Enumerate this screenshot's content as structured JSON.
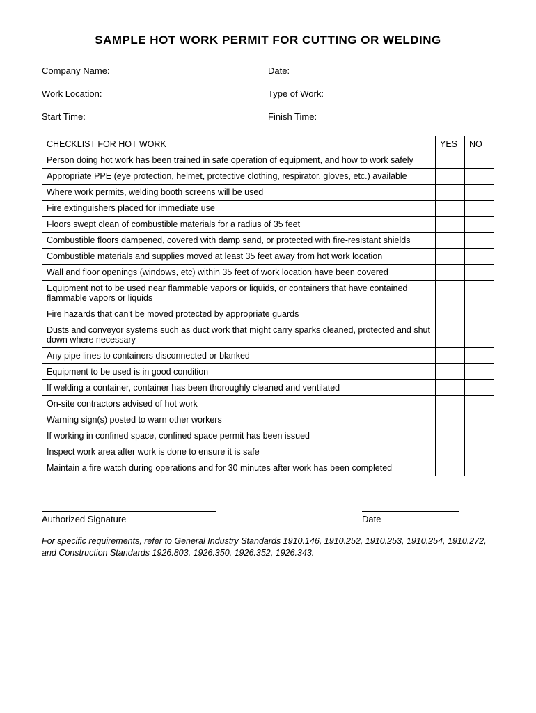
{
  "title": "SAMPLE HOT WORK PERMIT FOR CUTTING OR WELDING",
  "fields": {
    "company_name_label": "Company Name:",
    "date_label": "Date:",
    "work_location_label": "Work Location:",
    "type_of_work_label": "Type of Work:",
    "start_time_label": "Start Time:",
    "finish_time_label": "Finish Time:"
  },
  "table": {
    "header_main": "CHECKLIST FOR HOT WORK",
    "header_yes": "YES",
    "header_no": "NO",
    "rows": [
      "Person doing hot work has been trained in safe operation of equipment, and how to work safely",
      "Appropriate PPE (eye protection, helmet, protective clothing, respirator, gloves, etc.) available",
      "Where work permits, welding booth screens will be used",
      "Fire extinguishers placed for immediate use",
      "Floors swept clean of combustible materials for a radius of 35 feet",
      "Combustible floors dampened, covered with damp sand, or protected with fire-resistant shields",
      "Combustible materials and supplies moved at least 35 feet away from hot work location",
      "Wall and floor openings (windows, etc) within 35 feet of work location have been covered",
      "Equipment not to be used near flammable vapors or liquids, or containers that have contained flammable vapors or liquids",
      "Fire hazards that can't be moved protected by appropriate guards",
      "Dusts and conveyor systems such as duct work that might carry sparks cleaned, protected and shut down where necessary",
      "Any pipe lines to containers disconnected or blanked",
      "Equipment to be used is in good condition",
      "If welding a container, container has been thoroughly cleaned and ventilated",
      "On-site contractors advised of hot work",
      "Warning sign(s) posted to warn other workers",
      "If working in confined space, confined space permit has been issued",
      "Inspect work area after work is done to ensure it is safe",
      "Maintain a fire watch during operations and for 30 minutes after work has been completed"
    ]
  },
  "signature": {
    "authorized_label": "Authorized Signature",
    "date_label": "Date"
  },
  "footnote": "For specific requirements, refer to General Industry Standards 1910.146, 1910.252, 1910.253, 1910.254, 1910.272, and Construction Standards 1926.803, 1926.350, 1926.352, 1926.343."
}
